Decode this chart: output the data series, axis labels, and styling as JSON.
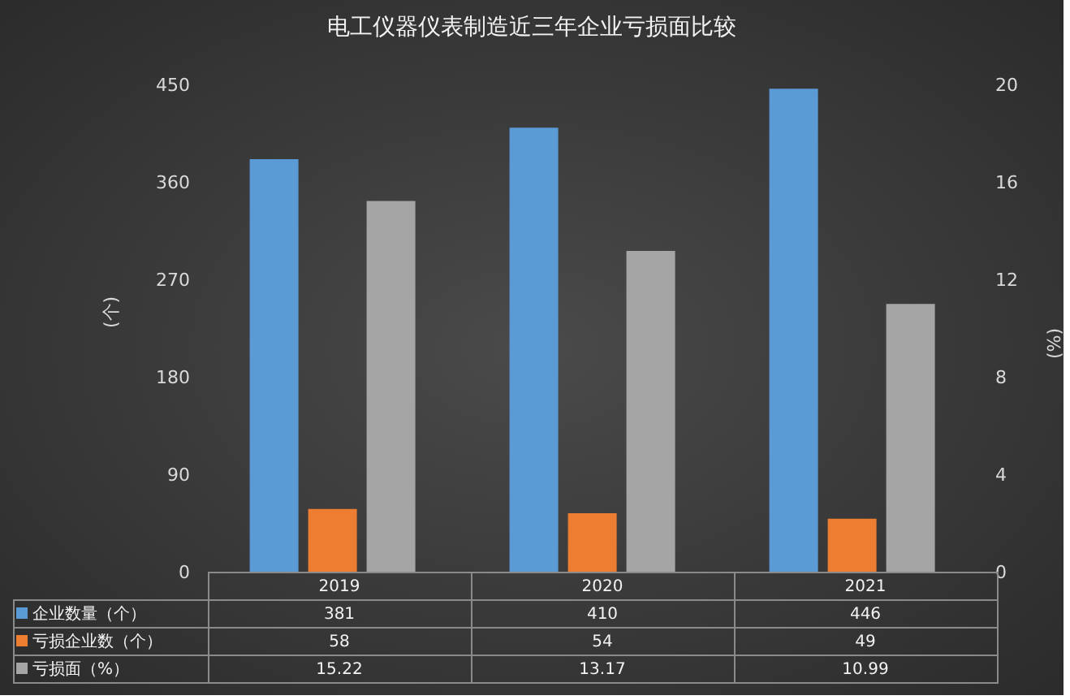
{
  "chart_data": {
    "type": "bar",
    "title": "电工仪器仪表制造近三年企业亏损面比较",
    "categories": [
      "2019",
      "2020",
      "2021"
    ],
    "series": [
      {
        "name": "企业数量（个）",
        "color": "#5b9bd5",
        "values": [
          381,
          410,
          446
        ]
      },
      {
        "name": "亏损企业数（个）",
        "color": "#ed7d31",
        "values": [
          58,
          54,
          49
        ]
      },
      {
        "name": "亏损面（%）",
        "color": "#a5a5a5",
        "values": [
          15.22,
          13.17,
          10.99
        ],
        "axis": "y2"
      }
    ],
    "ylabel": "(个)",
    "y2label": "(%)",
    "ylim": [
      0,
      450
    ],
    "yticks": [
      0,
      90,
      180,
      270,
      360,
      450
    ],
    "y2lim": [
      0,
      20
    ],
    "y2ticks": [
      0,
      4,
      8,
      12,
      16,
      20
    ],
    "data_labels": true,
    "legend": "bottom"
  }
}
